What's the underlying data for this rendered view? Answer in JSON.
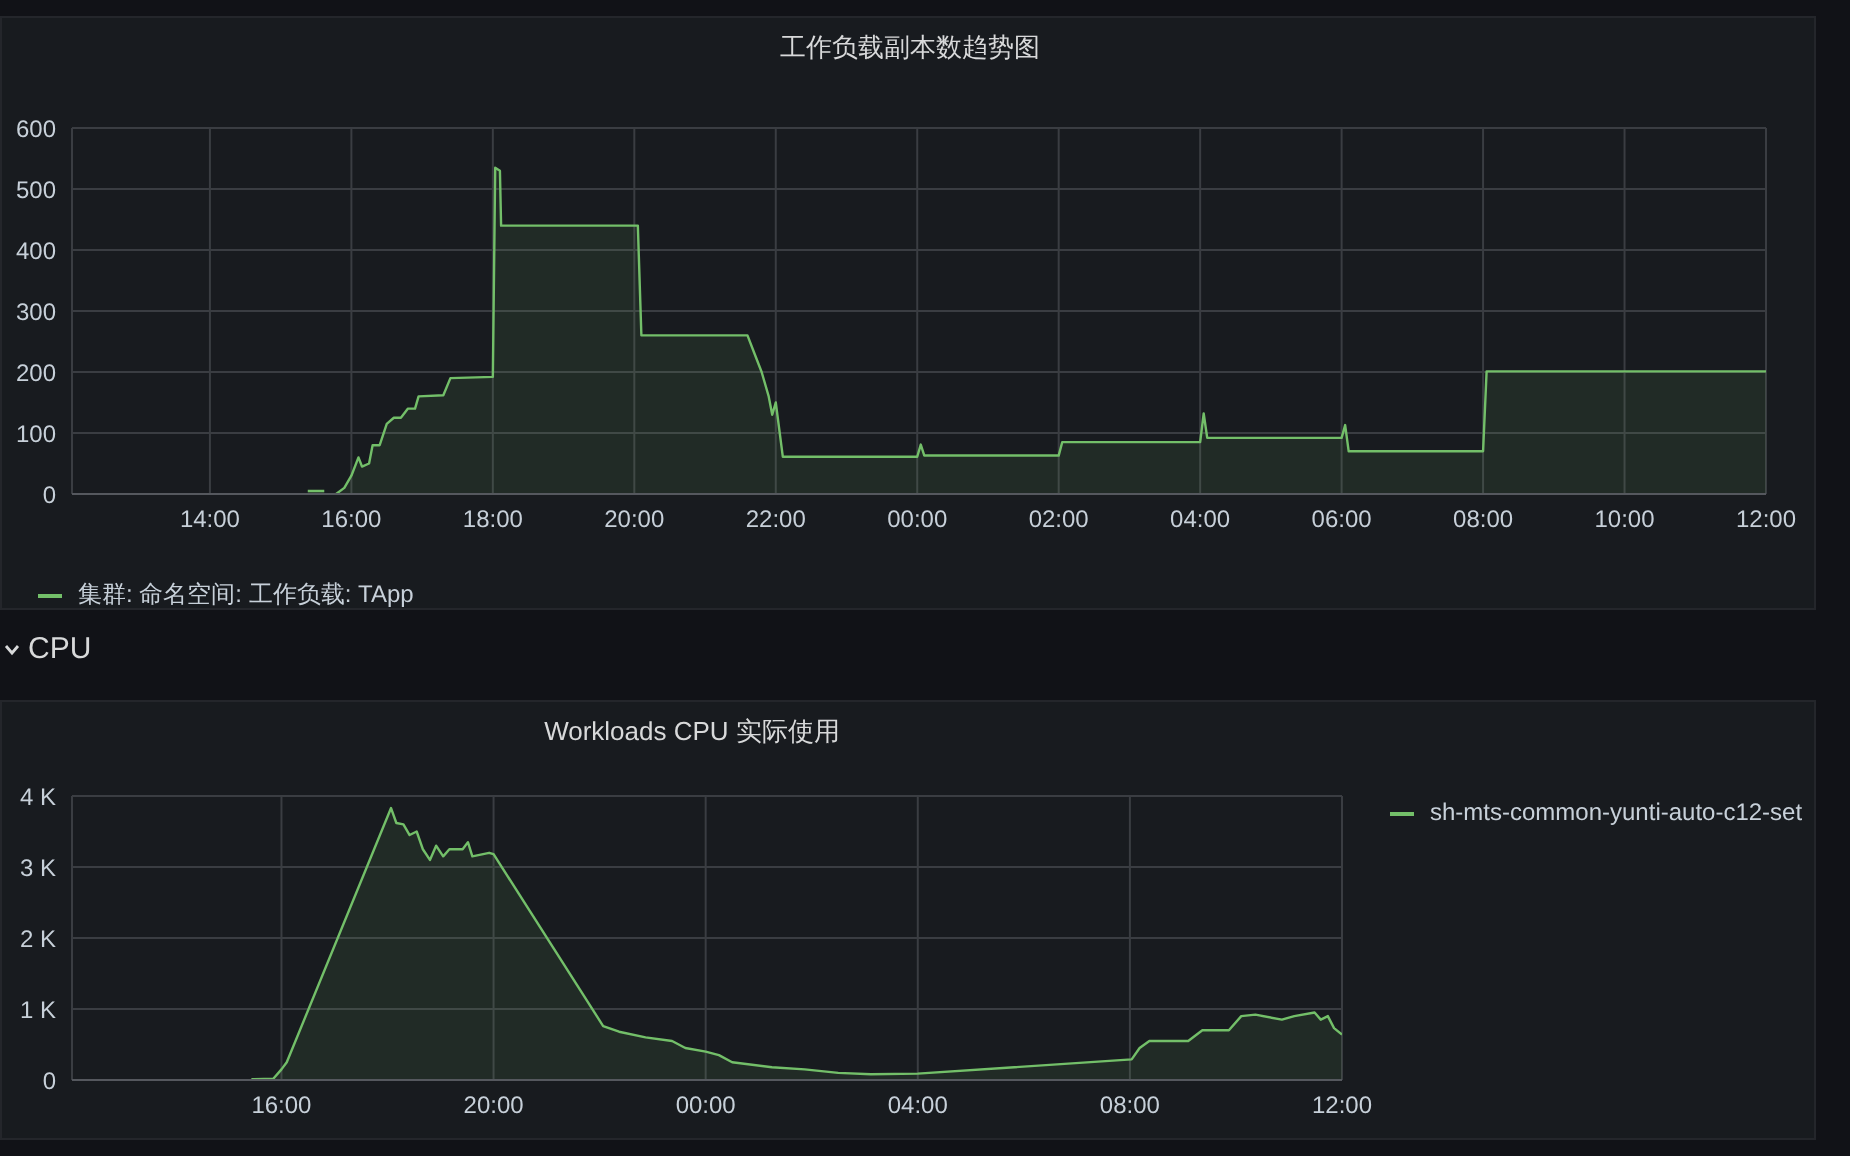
{
  "chart_data": [
    {
      "type": "area",
      "title": "工作负载副本数趋势图",
      "xlim": [
        "--01-01T12:03",
        "--01-02T12:00"
      ],
      "xticks": [
        {
          "value": "--01-01T14:00",
          "label": "14:00"
        },
        {
          "value": "--01-01T16:00",
          "label": "16:00"
        },
        {
          "value": "--01-01T18:00",
          "label": "18:00"
        },
        {
          "value": "--01-01T20:00",
          "label": "20:00"
        },
        {
          "value": "--01-01T22:00",
          "label": "22:00"
        },
        {
          "value": "--01-02T00:00",
          "label": "00:00"
        },
        {
          "value": "--01-02T02:00",
          "label": "02:00"
        },
        {
          "value": "--01-02T04:00",
          "label": "04:00"
        },
        {
          "value": "--01-02T06:00",
          "label": "06:00"
        },
        {
          "value": "--01-02T08:00",
          "label": "08:00"
        },
        {
          "value": "--01-02T10:00",
          "label": "10:00"
        },
        {
          "value": "--01-02T12:00",
          "label": "12:00"
        }
      ],
      "ylim": [
        0,
        600
      ],
      "yticks": [
        0,
        100,
        200,
        300,
        400,
        500,
        600
      ],
      "grid": true,
      "legend": "bottom",
      "series": [
        {
          "name": "集群: 命名空间: 工作负载: TApp",
          "color": "#73bf69",
          "x": [
            "--01-01T15:23",
            "--01-01T15:37",
            "--01-01T15:40",
            "--01-01T15:47",
            "--01-01T15:54",
            "--01-01T16:00",
            "--01-01T16:06",
            "--01-01T16:09",
            "--01-01T16:15",
            "--01-01T16:18",
            "--01-01T16:24",
            "--01-01T16:30",
            "--01-01T16:36",
            "--01-01T16:42",
            "--01-01T16:48",
            "--01-01T16:54",
            "--01-01T16:57",
            "--01-01T17:18",
            "--01-01T17:24",
            "--01-01T18:00",
            "--01-01T18:02",
            "--01-01T18:06",
            "--01-01T18:07",
            "--01-01T20:03",
            "--01-01T20:06",
            "--01-01T21:36",
            "--01-01T21:42",
            "--01-01T21:48",
            "--01-01T21:54",
            "--01-01T21:57",
            "--01-01T22:00",
            "--01-01T22:06",
            "--01-02T00:00",
            "--01-02T00:03",
            "--01-02T00:06",
            "--01-02T02:00",
            "--01-02T02:03",
            "--01-02T04:00",
            "--01-02T04:03",
            "--01-02T04:06",
            "--01-02T06:00",
            "--01-02T06:03",
            "--01-02T06:06",
            "--01-02T08:00",
            "--01-02T08:03",
            "--01-02T12:00"
          ],
          "values": [
            5,
            5,
            null,
            0,
            10,
            30,
            60,
            45,
            50,
            80,
            80,
            115,
            125,
            125,
            140,
            140,
            160,
            162,
            190,
            192,
            535,
            530,
            440,
            440,
            260,
            260,
            230,
            200,
            160,
            130,
            150,
            61,
            61,
            81,
            63,
            63,
            85,
            85,
            132,
            92,
            92,
            113,
            70,
            70,
            201,
            201
          ]
        }
      ]
    },
    {
      "type": "area",
      "title": "Workloads CPU 实际使用",
      "annotations": [
        "CPU"
      ],
      "xlim": [
        "--01-01T12:03",
        "--01-02T12:00"
      ],
      "xticks": [
        {
          "value": "--01-01T16:00",
          "label": "16:00"
        },
        {
          "value": "--01-01T20:00",
          "label": "20:00"
        },
        {
          "value": "--01-02T00:00",
          "label": "00:00"
        },
        {
          "value": "--01-02T04:00",
          "label": "04:00"
        },
        {
          "value": "--01-02T08:00",
          "label": "08:00"
        },
        {
          "value": "--01-02T12:00",
          "label": "12:00"
        }
      ],
      "ylim": [
        0,
        4000
      ],
      "yticks": [
        0,
        {
          "value": 1000,
          "label": "1 K"
        },
        {
          "value": 2000,
          "label": "2 K"
        },
        {
          "value": 3000,
          "label": "3 K"
        },
        {
          "value": 4000,
          "label": "4 K"
        }
      ],
      "grid": true,
      "legend": "right",
      "series": [
        {
          "name": "sh-mts-common-yunti-auto-c12-set",
          "color": "#73bf69",
          "x": [
            "--01-01T15:26",
            "--01-01T15:51",
            "--01-01T16:00",
            "--01-01T16:06",
            "--01-01T18:04",
            "--01-01T18:10",
            "--01-01T18:18",
            "--01-01T18:25",
            "--01-01T18:33",
            "--01-01T18:40",
            "--01-01T18:48",
            "--01-01T18:55",
            "--01-01T19:03",
            "--01-01T19:10",
            "--01-01T19:25",
            "--01-01T19:31",
            "--01-01T19:36",
            "--01-01T19:55",
            "--01-01T20:00",
            "--01-01T22:04",
            "--01-01T22:22",
            "--01-01T22:52",
            "--01-01T23:22",
            "--01-01T23:37",
            "--01-02T00:00",
            "--01-02T00:15",
            "--01-02T00:30",
            "--01-02T01:15",
            "--01-02T01:52",
            "--01-02T02:30",
            "--01-02T03:07",
            "--01-02T04:00",
            "--01-02T08:02",
            "--01-02T08:11",
            "--01-02T08:22",
            "--01-02T08:45",
            "--01-02T09:06",
            "--01-02T09:22",
            "--01-02T09:52",
            "--01-02T10:06",
            "--01-02T10:22",
            "--01-02T10:52",
            "--01-02T11:06",
            "--01-02T11:29",
            "--01-02T11:36",
            "--01-02T11:44",
            "--01-02T11:51",
            "--01-02T12:00"
          ],
          "values": [
            10,
            20,
            150,
            250,
            3830,
            3620,
            3600,
            3450,
            3500,
            3250,
            3100,
            3300,
            3150,
            3250,
            3250,
            3350,
            3150,
            3200,
            3180,
            760,
            680,
            600,
            550,
            450,
            400,
            350,
            250,
            180,
            150,
            100,
            80,
            90,
            290,
            450,
            550,
            550,
            550,
            700,
            700,
            900,
            920,
            850,
            900,
            950,
            850,
            900,
            730,
            640
          ]
        }
      ]
    }
  ]
}
